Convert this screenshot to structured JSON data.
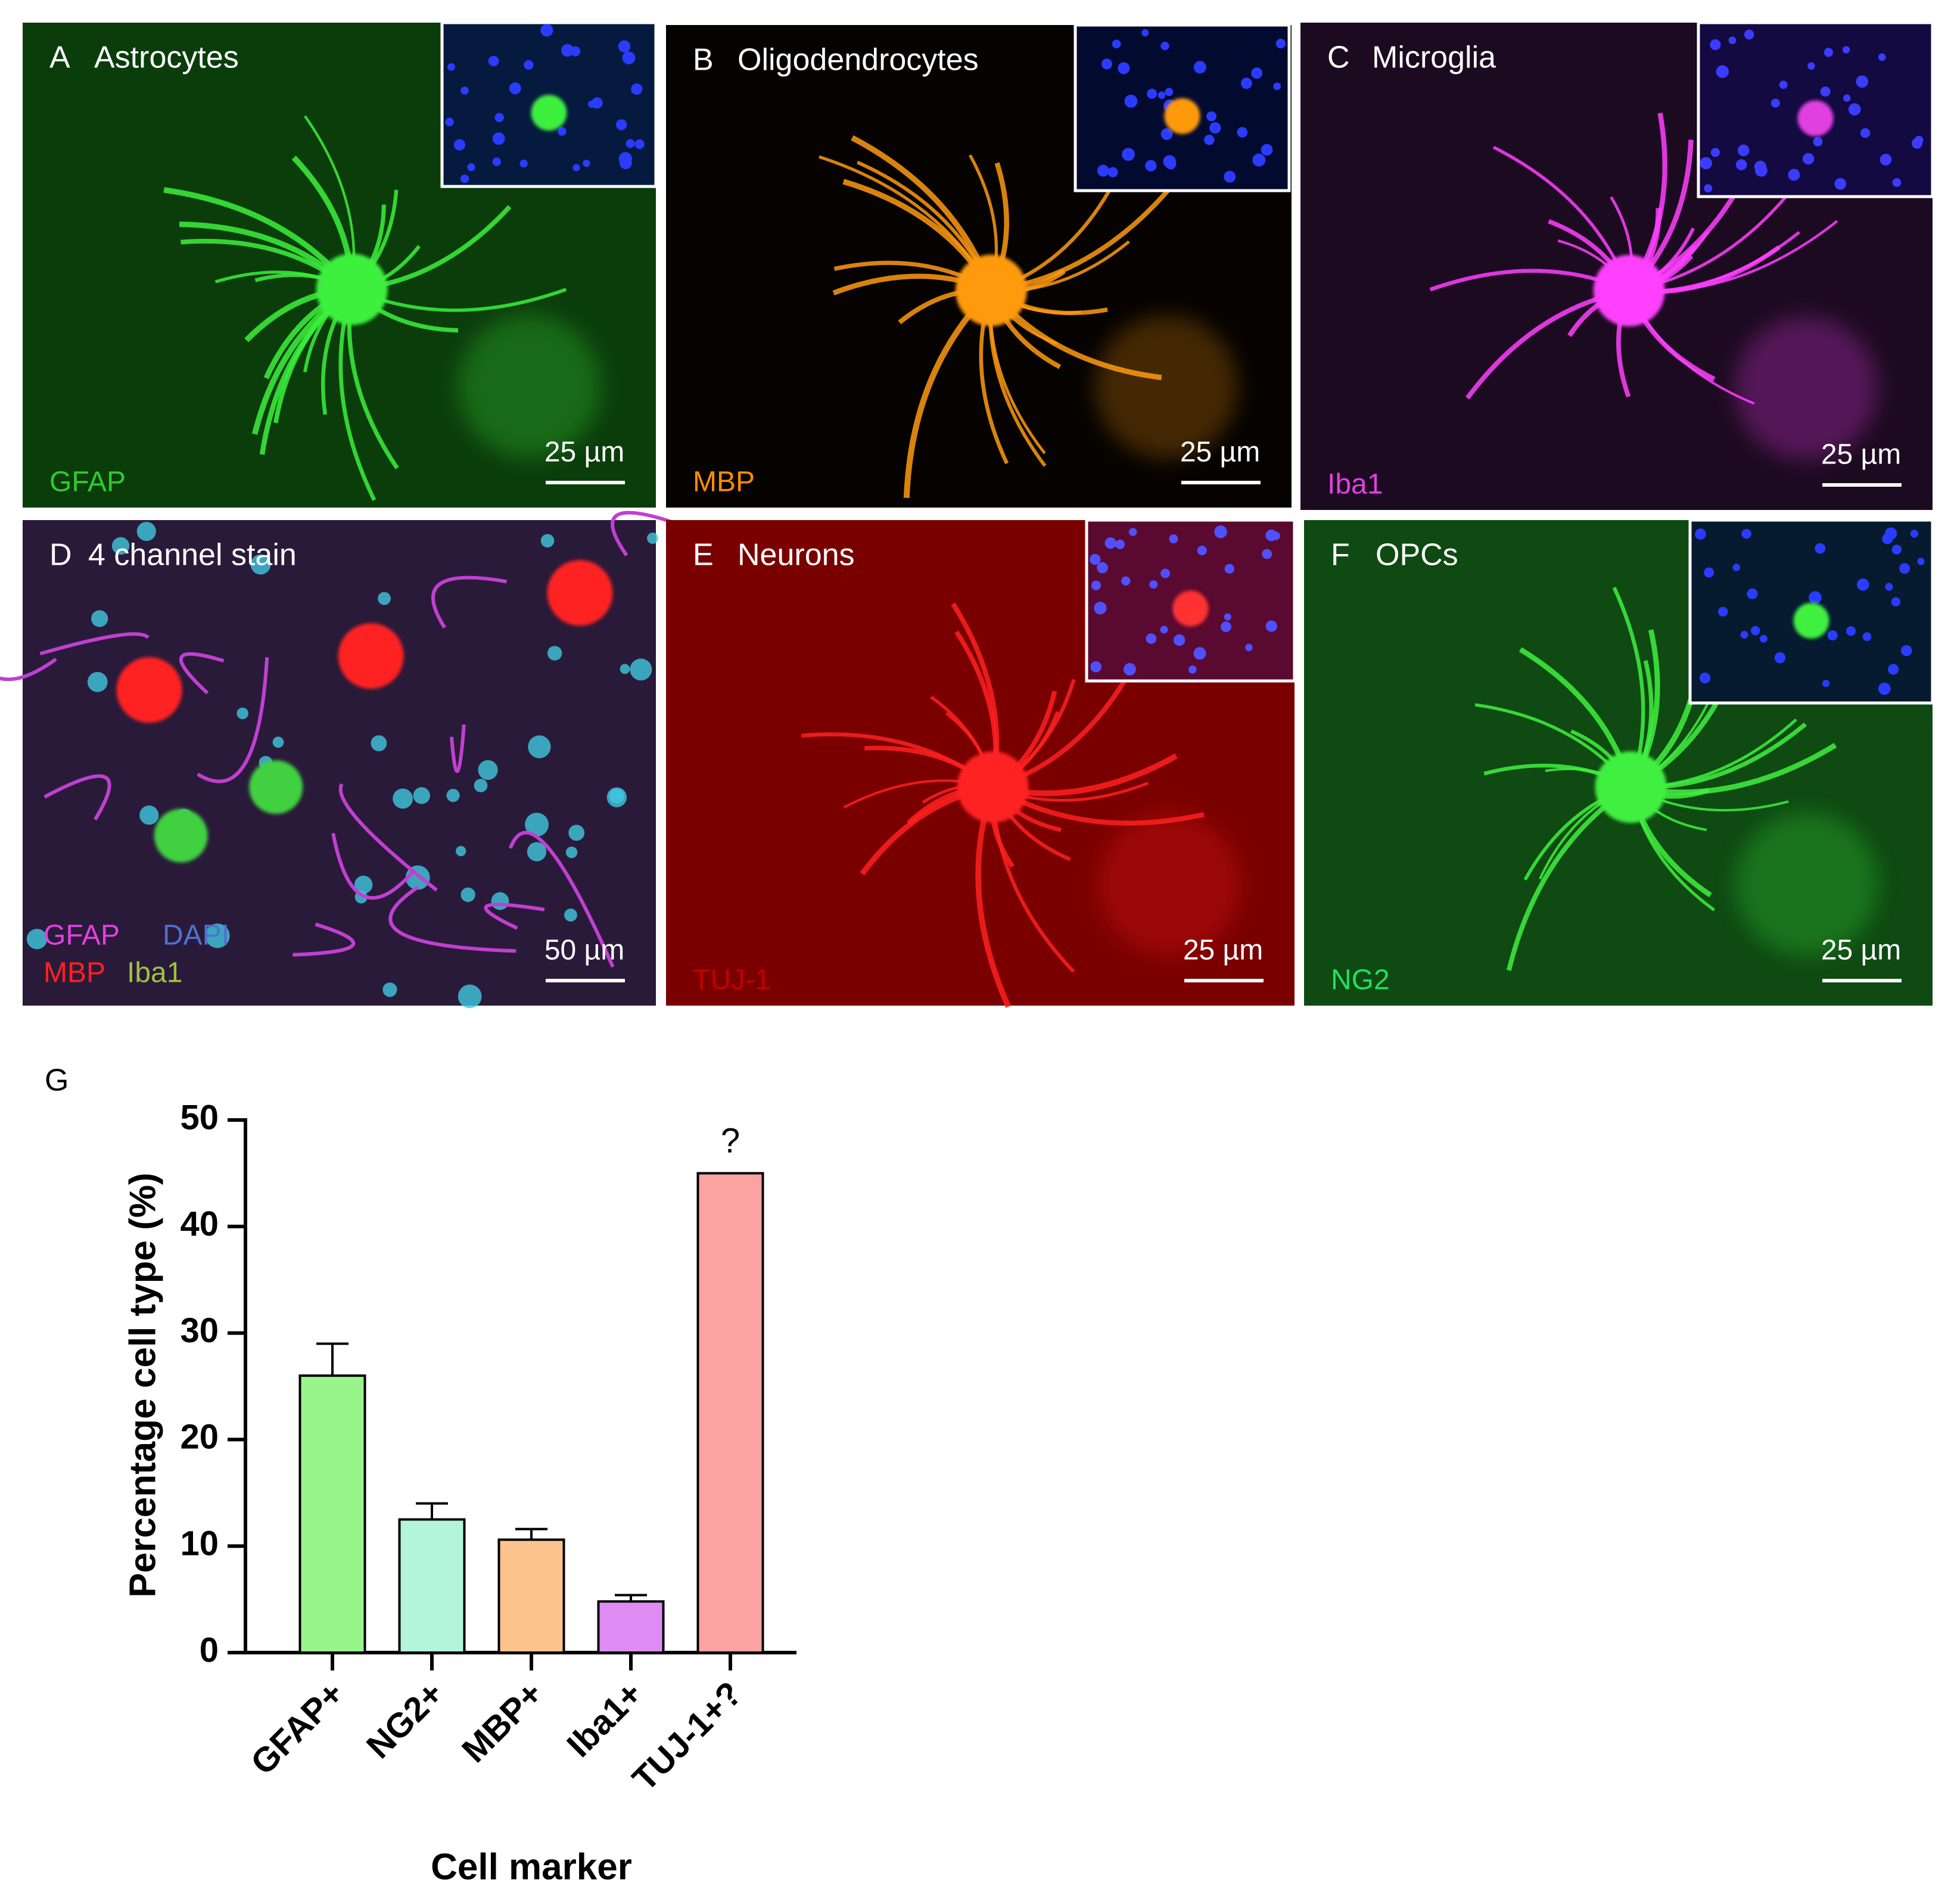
{
  "panels": [
    {
      "letter": "A",
      "title": "Astrocytes",
      "markers": [
        "GFAP"
      ],
      "scale_bar": "25 µm"
    },
    {
      "letter": "B",
      "title": "Oligodendrocytes",
      "markers": [
        "MBP"
      ],
      "scale_bar": "25 µm"
    },
    {
      "letter": "C",
      "title": "Microglia",
      "markers": [
        "Iba1"
      ],
      "scale_bar": "25 µm"
    },
    {
      "letter": "D",
      "title": "4 channel stain",
      "markers": [
        "GFAP",
        "DAPI",
        "MBP",
        "Iba1"
      ],
      "scale_bar": "50 µm"
    },
    {
      "letter": "E",
      "title": "Neurons",
      "markers": [
        "TUJ-1"
      ],
      "scale_bar": "25 µm"
    },
    {
      "letter": "F",
      "title": "OPCs",
      "markers": [
        "NG2"
      ],
      "scale_bar": "25 µm"
    }
  ],
  "chart_data": {
    "type": "bar",
    "panel_label": "G",
    "x_label": "Cell marker",
    "y_label": "Percentage cell type (%)",
    "categories": [
      "GFAP+",
      "NG2+",
      "MBP+",
      "Iba1+",
      "TUJ-1+?"
    ],
    "values": [
      26,
      12.5,
      10.6,
      4.8,
      45
    ],
    "errors": [
      3,
      1.5,
      1,
      0.6,
      null
    ],
    "colors": [
      "#98f58c",
      "#b2f5dc",
      "#fcc48c",
      "#de8cf4",
      "#fba2a2"
    ],
    "ylim": [
      0,
      50
    ],
    "yticks": [
      0,
      10,
      20,
      30,
      40,
      50
    ],
    "annotations": [
      {
        "text": "?",
        "category": "TUJ-1+?"
      }
    ]
  }
}
